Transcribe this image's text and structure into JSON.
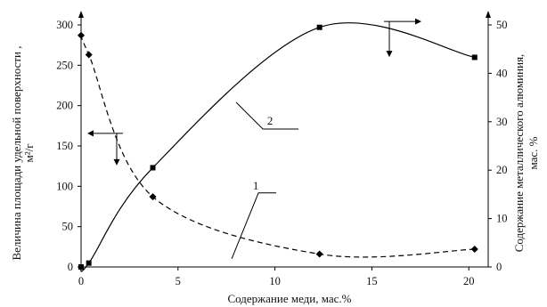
{
  "chart_data": {
    "type": "line",
    "xlabel": "Содержание меди, мас.%",
    "ylabel_left_lines": [
      "Величина площади удельной поверхности ,",
      "м²/г"
    ],
    "ylabel_right_lines": [
      "Содержание металлического алюминия,",
      "мас. %"
    ],
    "xlim": [
      0,
      21
    ],
    "ylim_left": [
      0,
      300
    ],
    "ylim_right": [
      0,
      50
    ],
    "x_ticks": [
      0,
      5,
      10,
      15,
      20
    ],
    "y_left_ticks": [
      0,
      50,
      100,
      150,
      200,
      250,
      300
    ],
    "y_right_ticks": [
      0,
      10,
      20,
      30,
      40,
      50
    ],
    "grid": false,
    "series": [
      {
        "name": "1",
        "axis": "left",
        "line_style": "dashed",
        "marker": "diamond",
        "points": [
          [
            0,
            287
          ],
          [
            0.4,
            263
          ],
          [
            3.7,
            87
          ],
          [
            12.3,
            16
          ],
          [
            20.3,
            22
          ]
        ]
      },
      {
        "name": "2",
        "axis": "right",
        "line_style": "solid",
        "marker": "square",
        "points": [
          [
            0,
            0
          ],
          [
            0.4,
            0.8
          ],
          [
            3.7,
            20.5
          ],
          [
            12.3,
            49.5
          ],
          [
            20.3,
            43.3
          ]
        ]
      }
    ],
    "curve_labels": [
      {
        "text": "1",
        "series": "1"
      },
      {
        "text": "2",
        "series": "2"
      }
    ],
    "colors": {
      "line": "#000000",
      "background": "#ffffff"
    }
  }
}
